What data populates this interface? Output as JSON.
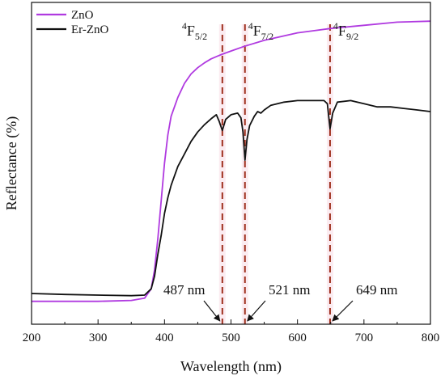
{
  "chart_data": {
    "type": "line",
    "title": "",
    "xlabel": "Wavelength (nm)",
    "ylabel": "Reflectance (%)",
    "xlim": [
      200,
      800
    ],
    "ylim": [
      0,
      100
    ],
    "y_ticks_labeled": false,
    "x_ticks": [
      200,
      300,
      400,
      500,
      600,
      700,
      800
    ],
    "x_tick_labels": [
      "200",
      "300",
      "400",
      "500",
      "600",
      "700",
      "800"
    ],
    "grid": false,
    "legend_position": "top-left",
    "series": [
      {
        "name": "ZnO",
        "color": "#b03ae0",
        "x": [
          200,
          250,
          300,
          350,
          370,
          380,
          385,
          390,
          395,
          400,
          405,
          410,
          420,
          430,
          440,
          450,
          460,
          470,
          480,
          487,
          500,
          520,
          550,
          600,
          650,
          700,
          750,
          800
        ],
        "y": [
          6,
          6,
          6,
          6.3,
          7,
          10,
          16,
          26,
          38,
          50,
          59,
          65,
          71,
          75.5,
          78.5,
          80.5,
          82,
          83.3,
          84.2,
          84.8,
          85.8,
          87.3,
          89.2,
          91.6,
          93,
          94,
          95,
          95.3
        ]
      },
      {
        "name": "Er-ZnO",
        "color": "#111111",
        "x": [
          200,
          250,
          300,
          350,
          370,
          380,
          385,
          390,
          395,
          400,
          405,
          410,
          420,
          430,
          440,
          450,
          460,
          470,
          478,
          482,
          487,
          492,
          500,
          510,
          515,
          518,
          521,
          524,
          528,
          535,
          540,
          545,
          550,
          560,
          580,
          600,
          620,
          640,
          645,
          649,
          653,
          660,
          680,
          700,
          720,
          740,
          760,
          780,
          800
        ],
        "y": [
          8.5,
          8.2,
          8,
          7.8,
          8,
          10,
          14,
          21,
          27,
          34,
          39,
          43,
          49,
          53,
          57,
          60,
          62.3,
          64.2,
          65.5,
          63.5,
          60.5,
          64,
          65.5,
          66,
          64.5,
          60,
          51,
          57.5,
          62,
          65,
          66.5,
          66,
          67,
          68.5,
          69.5,
          70,
          70,
          70,
          69,
          61,
          66,
          69.5,
          70,
          69,
          68,
          68,
          67.5,
          67,
          66.5
        ]
      }
    ],
    "annotations": {
      "transitions": [
        {
          "level": "F",
          "superscript": "4",
          "subscript": "5/2",
          "x": 487
        },
        {
          "level": "F",
          "superscript": "4",
          "subscript": "7/2",
          "x": 521
        },
        {
          "level": "F",
          "superscript": "4",
          "subscript": "9/2",
          "x": 649
        }
      ],
      "arrow_labels": [
        {
          "text": "487 nm",
          "x": 487
        },
        {
          "text": "521 nm",
          "x": 521
        },
        {
          "text": "649 nm",
          "x": 649
        }
      ],
      "marker_color": "#a0301e"
    }
  }
}
